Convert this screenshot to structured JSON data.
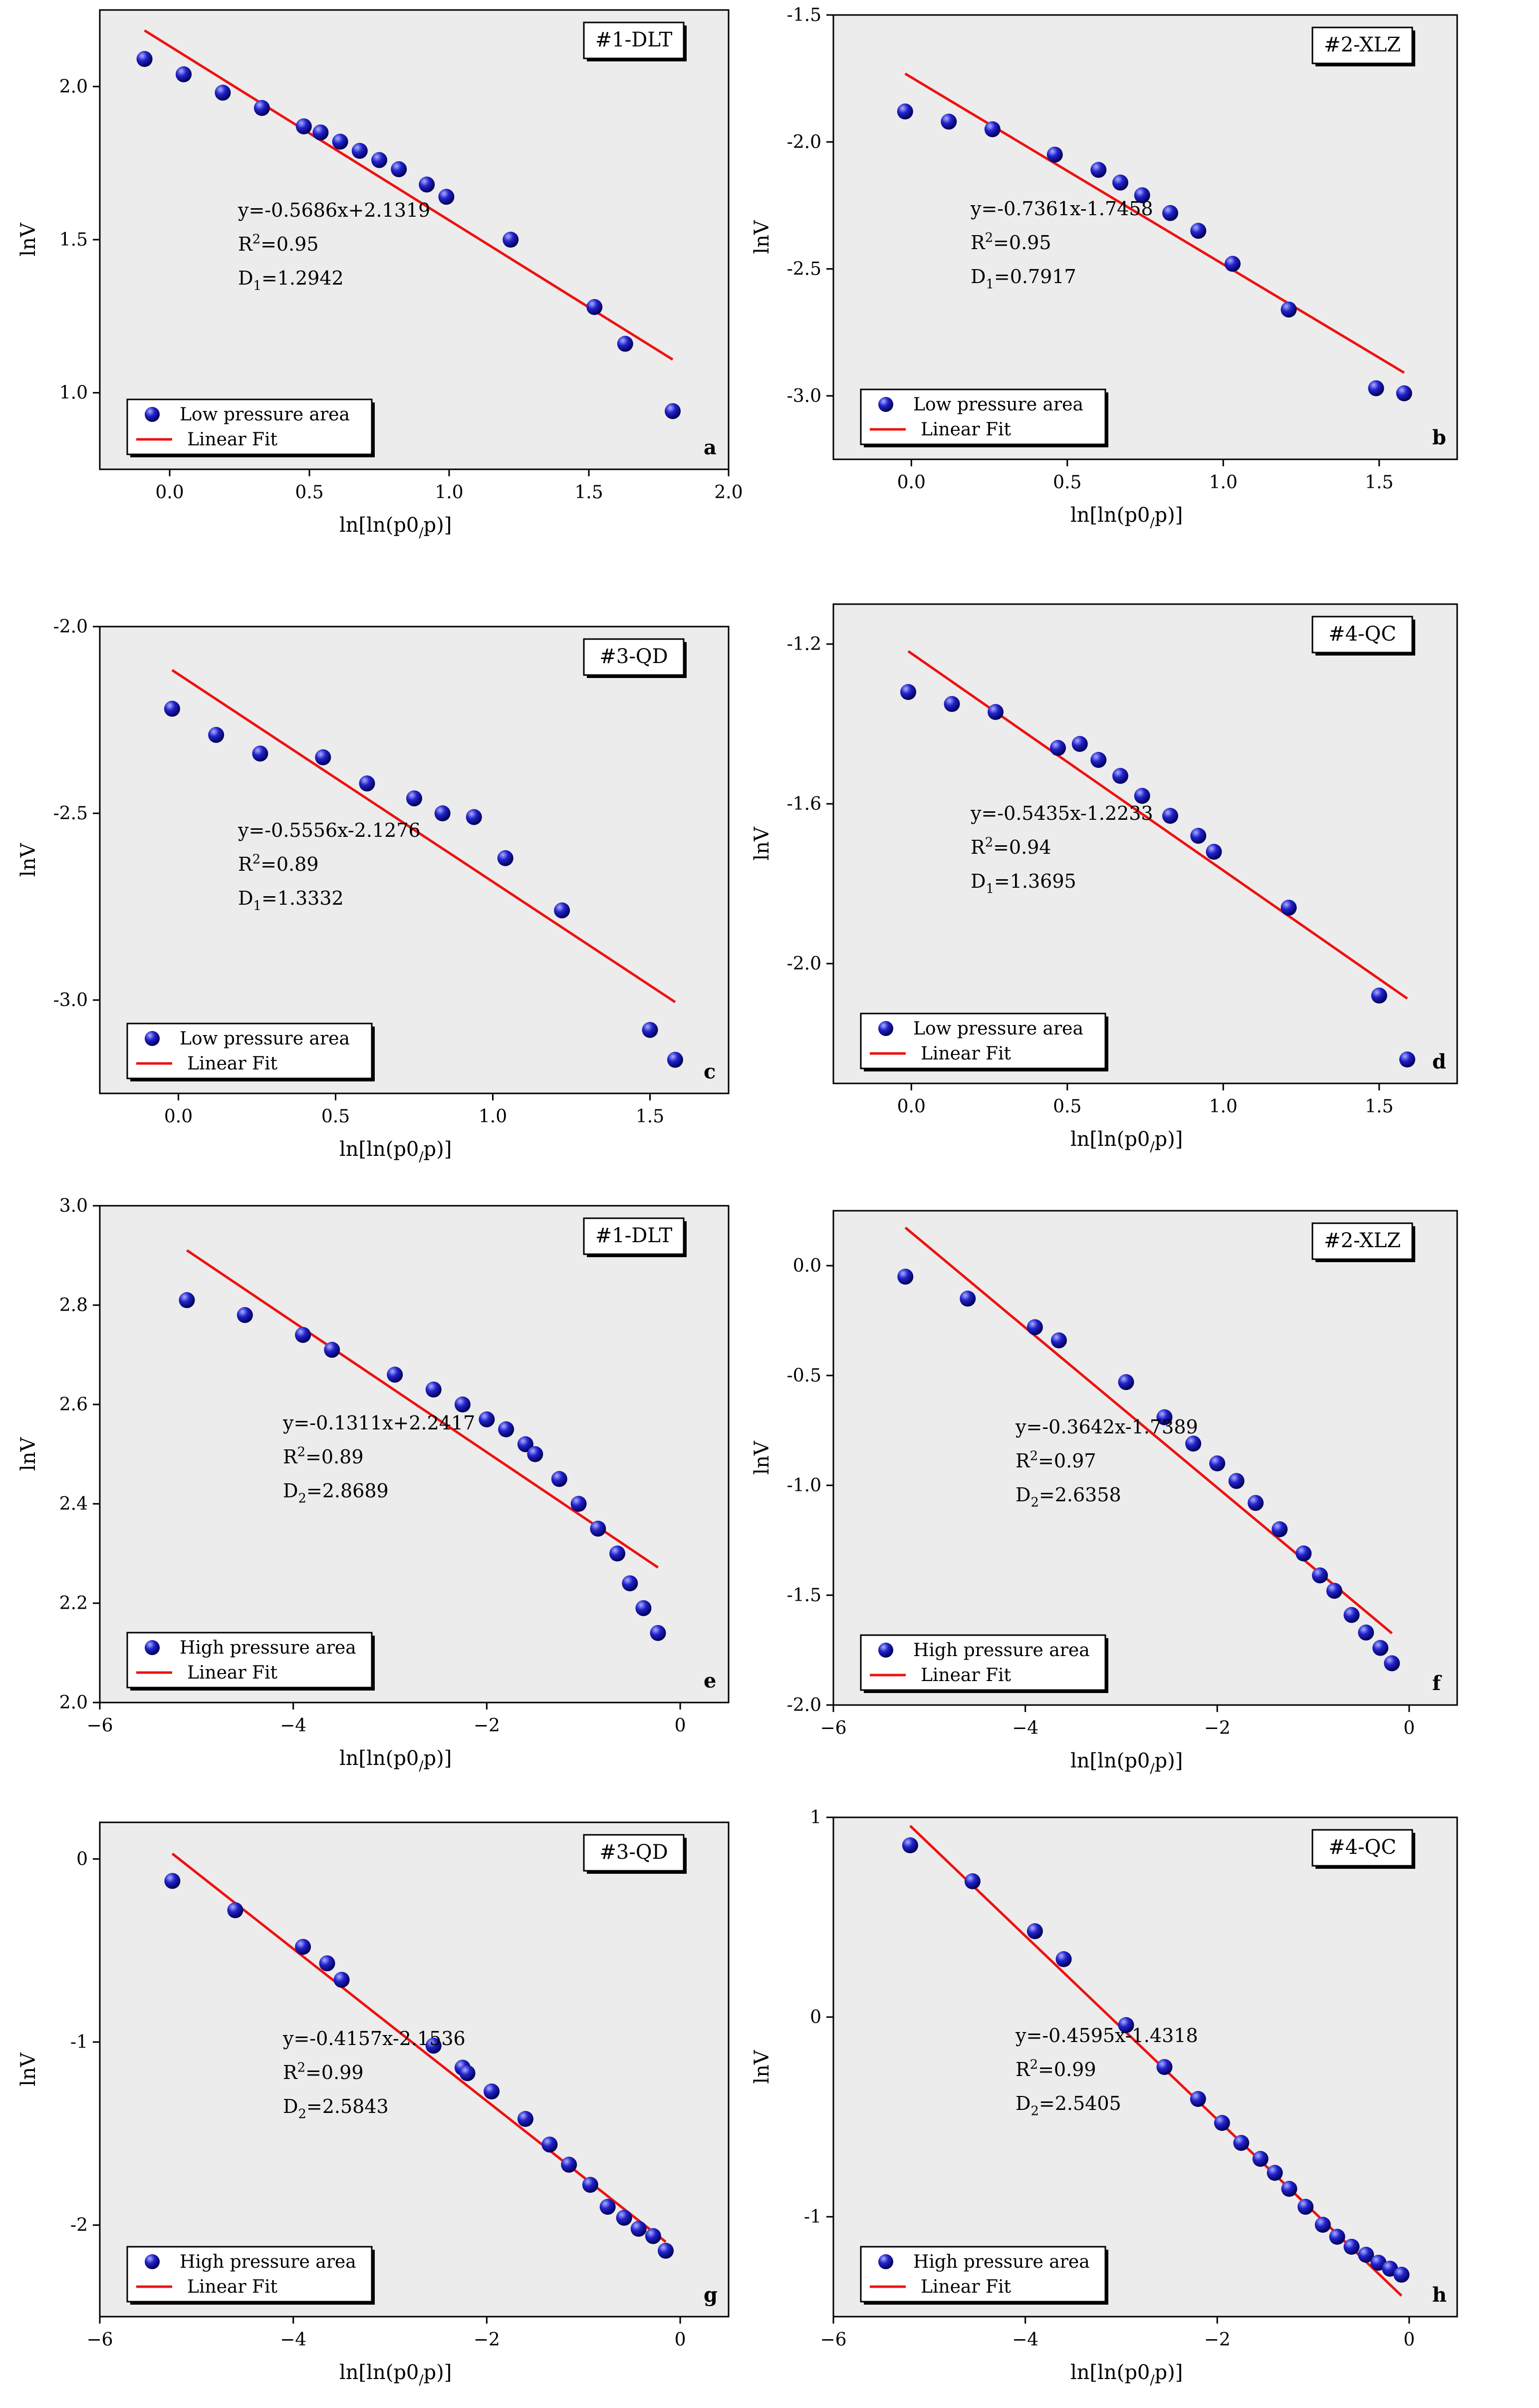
{
  "figure_title": "",
  "chart_data": [
    {
      "type": "scatter",
      "panel_letter": "a",
      "sample_label": "#1-DLT",
      "xlabel": "ln[ln(p0/p)]",
      "ylabel": "lnV",
      "xlim": [
        -0.25,
        2.0
      ],
      "ylim": [
        0.75,
        2.25
      ],
      "xticks": [
        0.0,
        0.5,
        1.0,
        1.5,
        2.0
      ],
      "xticklabels": [
        "0.0",
        "0.5",
        "1.0",
        "1.5",
        "2.0"
      ],
      "yticks": [
        1.0,
        1.5,
        2.0
      ],
      "yticklabels": [
        "1.0",
        "1.5",
        "2.0"
      ],
      "x": [
        -0.09,
        0.05,
        0.19,
        0.33,
        0.48,
        0.54,
        0.61,
        0.68,
        0.75,
        0.82,
        0.92,
        0.99,
        1.22,
        1.52,
        1.63,
        1.8
      ],
      "y": [
        2.09,
        2.04,
        1.98,
        1.93,
        1.87,
        1.85,
        1.82,
        1.79,
        1.76,
        1.73,
        1.68,
        1.64,
        1.5,
        1.28,
        1.16,
        0.94
      ],
      "fit": {
        "slope": -0.5686,
        "intercept": 2.1319,
        "x_range": [
          -0.09,
          1.8
        ]
      },
      "equation": "y=-0.5686x+2.1319",
      "r2": "R2=0.95",
      "dim_label": "D1=1.2942",
      "legend": [
        "Low pressure area",
        "Linear Fit"
      ]
    },
    {
      "type": "scatter",
      "panel_letter": "b",
      "sample_label": "#2-XLZ",
      "xlabel": "ln[ln(p0/p)]",
      "ylabel": "lnV",
      "xlim": [
        -0.25,
        1.75
      ],
      "ylim": [
        -3.25,
        -1.5
      ],
      "xticks": [
        0.0,
        0.5,
        1.0,
        1.5
      ],
      "xticklabels": [
        "0.0",
        "0.5",
        "1.0",
        "1.5"
      ],
      "yticks": [
        -3.0,
        -2.5,
        -2.0,
        -1.5
      ],
      "yticklabels": [
        "-3.0",
        "-2.5",
        "-2.0",
        "-1.5"
      ],
      "x": [
        -0.02,
        0.12,
        0.26,
        0.46,
        0.6,
        0.67,
        0.74,
        0.83,
        0.92,
        1.03,
        1.21,
        1.49,
        1.58
      ],
      "y": [
        -1.88,
        -1.92,
        -1.95,
        -2.05,
        -2.11,
        -2.16,
        -2.21,
        -2.28,
        -2.35,
        -2.48,
        -2.66,
        -2.97,
        -2.99
      ],
      "fit": {
        "slope": -0.7361,
        "intercept": -1.7458,
        "x_range": [
          -0.02,
          1.58
        ]
      },
      "equation": "y=-0.7361x-1.7458",
      "r2": "R2=0.95",
      "dim_label": "D1=0.7917",
      "legend": [
        "Low pressure area",
        "Linear Fit"
      ]
    },
    {
      "type": "scatter",
      "panel_letter": "c",
      "sample_label": "#3-QD",
      "xlabel": "ln[ln(p0/p)]",
      "ylabel": "lnV",
      "xlim": [
        -0.25,
        1.75
      ],
      "ylim": [
        -3.25,
        -2.0
      ],
      "xticks": [
        0.0,
        0.5,
        1.0,
        1.5
      ],
      "xticklabels": [
        "0.0",
        "0.5",
        "1.0",
        "1.5"
      ],
      "yticks": [
        -3.0,
        -2.5,
        -2.0
      ],
      "yticklabels": [
        "-3.0",
        "-2.5",
        "-2.0"
      ],
      "x": [
        -0.02,
        0.12,
        0.26,
        0.46,
        0.6,
        0.75,
        0.84,
        0.94,
        1.04,
        1.22,
        1.5,
        1.58
      ],
      "y": [
        -2.22,
        -2.29,
        -2.34,
        -2.35,
        -2.42,
        -2.46,
        -2.5,
        -2.51,
        -2.62,
        -2.76,
        -3.08,
        -3.16
      ],
      "fit": {
        "slope": -0.5556,
        "intercept": -2.1276,
        "x_range": [
          -0.02,
          1.58
        ]
      },
      "equation": "y=-0.5556x-2.1276",
      "r2": "R2=0.89",
      "dim_label": "D1=1.3332",
      "legend": [
        "Low pressure area",
        "Linear Fit"
      ]
    },
    {
      "type": "scatter",
      "panel_letter": "d",
      "sample_label": "#4-QC",
      "xlabel": "ln[ln(p0/p)]",
      "ylabel": "lnV",
      "xlim": [
        -0.25,
        1.75
      ],
      "ylim": [
        -2.3,
        -1.1
      ],
      "xticks": [
        0.0,
        0.5,
        1.0,
        1.5
      ],
      "xticklabels": [
        "0.0",
        "0.5",
        "1.0",
        "1.5"
      ],
      "yticks": [
        -2.0,
        -1.6,
        -1.2
      ],
      "yticklabels": [
        "-2.0",
        "-1.6",
        "-1.2"
      ],
      "x": [
        -0.01,
        0.13,
        0.27,
        0.47,
        0.54,
        0.6,
        0.67,
        0.74,
        0.83,
        0.92,
        0.97,
        1.21,
        1.5,
        1.59
      ],
      "y": [
        -1.32,
        -1.35,
        -1.37,
        -1.46,
        -1.45,
        -1.49,
        -1.53,
        -1.58,
        -1.63,
        -1.68,
        -1.72,
        -1.86,
        -2.08,
        -2.24
      ],
      "fit": {
        "slope": -0.5435,
        "intercept": -1.2233,
        "x_range": [
          -0.01,
          1.59
        ]
      },
      "equation": "y=-0.5435x-1.2233",
      "r2": "R2=0.94",
      "dim_label": "D1=1.3695",
      "legend": [
        "Low pressure area",
        "Linear Fit"
      ]
    },
    {
      "type": "scatter",
      "panel_letter": "e",
      "sample_label": "#1-DLT",
      "xlabel": "ln[ln(p0/p)]",
      "ylabel": "lnV",
      "xlim": [
        -6.0,
        0.5
      ],
      "ylim": [
        2.0,
        3.0
      ],
      "xticks": [
        -6,
        -4,
        -2,
        0
      ],
      "xticklabels": [
        "−6",
        "−4",
        "−2",
        "0"
      ],
      "yticks": [
        2.0,
        2.2,
        2.4,
        2.6,
        2.8,
        3.0
      ],
      "yticklabels": [
        "2.0",
        "2.2",
        "2.4",
        "2.6",
        "2.8",
        "3.0"
      ],
      "x": [
        -5.1,
        -4.5,
        -3.9,
        -3.6,
        -2.95,
        -2.55,
        -2.25,
        -2.0,
        -1.8,
        -1.6,
        -1.5,
        -1.25,
        -1.05,
        -0.85,
        -0.65,
        -0.52,
        -0.38,
        -0.23
      ],
      "y": [
        2.81,
        2.78,
        2.74,
        2.71,
        2.66,
        2.63,
        2.6,
        2.57,
        2.55,
        2.52,
        2.5,
        2.45,
        2.4,
        2.35,
        2.3,
        2.24,
        2.19,
        2.14
      ],
      "fit": {
        "slope": -0.1311,
        "intercept": 2.2417,
        "x_range": [
          -5.1,
          -0.23
        ]
      },
      "equation": "y=-0.1311x+2.2417",
      "r2": "R2=0.89",
      "dim_label": "D2=2.8689",
      "legend": [
        "High pressure area",
        "Linear Fit"
      ]
    },
    {
      "type": "scatter",
      "panel_letter": "f",
      "sample_label": "#2-XLZ",
      "xlabel": "ln[ln(p0/p)]",
      "ylabel": "lnV",
      "xlim": [
        -6.0,
        0.5
      ],
      "ylim": [
        -2.0,
        0.25
      ],
      "xticks": [
        -6,
        -4,
        -2,
        0
      ],
      "xticklabels": [
        "−6",
        "−4",
        "−2",
        "0"
      ],
      "yticks": [
        -2.0,
        -1.5,
        -1.0,
        -0.5,
        0.0
      ],
      "yticklabels": [
        "-2.0",
        "-1.5",
        "-1.0",
        "-0.5",
        "0.0"
      ],
      "x": [
        -5.25,
        -4.6,
        -3.9,
        -3.65,
        -2.95,
        -2.55,
        -2.25,
        -2.0,
        -1.8,
        -1.6,
        -1.35,
        -1.1,
        -0.93,
        -0.78,
        -0.6,
        -0.45,
        -0.3,
        -0.18
      ],
      "y": [
        -0.05,
        -0.15,
        -0.28,
        -0.34,
        -0.53,
        -0.69,
        -0.81,
        -0.9,
        -0.98,
        -1.08,
        -1.2,
        -1.31,
        -1.41,
        -1.48,
        -1.59,
        -1.67,
        -1.74,
        -1.81
      ],
      "fit": {
        "slope": -0.3642,
        "intercept": -1.7389,
        "x_range": [
          -5.25,
          -0.18
        ]
      },
      "equation": "y=-0.3642x-1.7389",
      "r2": "R2=0.97",
      "dim_label": "D2=2.6358",
      "legend": [
        "High pressure area",
        "Linear Fit"
      ]
    },
    {
      "type": "scatter",
      "panel_letter": "g",
      "sample_label": "#3-QD",
      "xlabel": "ln[ln(p0/p)]",
      "ylabel": "lnV",
      "xlim": [
        -6.0,
        0.5
      ],
      "ylim": [
        -2.5,
        0.2
      ],
      "xticks": [
        -6,
        -4,
        -2,
        0
      ],
      "xticklabels": [
        "−6",
        "−4",
        "−2",
        "0"
      ],
      "yticks": [
        -2,
        -1,
        0
      ],
      "yticklabels": [
        "-2",
        "-1",
        "0"
      ],
      "x": [
        -5.25,
        -4.6,
        -3.9,
        -3.65,
        -3.5,
        -2.55,
        -2.25,
        -2.2,
        -1.95,
        -1.6,
        -1.35,
        -1.15,
        -0.93,
        -0.75,
        -0.58,
        -0.43,
        -0.28,
        -0.15
      ],
      "y": [
        -0.12,
        -0.28,
        -0.48,
        -0.57,
        -0.66,
        -1.02,
        -1.14,
        -1.17,
        -1.27,
        -1.42,
        -1.56,
        -1.67,
        -1.78,
        -1.9,
        -1.96,
        -2.02,
        -2.06,
        -2.14
      ],
      "fit": {
        "slope": -0.4157,
        "intercept": -2.1536,
        "x_range": [
          -5.25,
          -0.15
        ]
      },
      "equation": "y=-0.4157x-2.1536",
      "r2": "R2=0.99",
      "dim_label": "D2=2.5843",
      "legend": [
        "High pressure area",
        "Linear Fit"
      ]
    },
    {
      "type": "scatter",
      "panel_letter": "h",
      "sample_label": "#4-QC",
      "xlabel": "ln[ln(p0/p)]",
      "ylabel": "lnV",
      "xlim": [
        -6.0,
        0.5
      ],
      "ylim": [
        -1.5,
        1.0
      ],
      "xticks": [
        -6,
        -4,
        -2,
        0
      ],
      "xticklabels": [
        "−6",
        "−4",
        "−2",
        "0"
      ],
      "yticks": [
        -1,
        0,
        1
      ],
      "yticklabels": [
        "-1",
        "0",
        "1"
      ],
      "x": [
        -5.2,
        -4.55,
        -3.9,
        -3.6,
        -2.95,
        -2.55,
        -2.2,
        -1.95,
        -1.75,
        -1.55,
        -1.4,
        -1.25,
        -1.08,
        -0.9,
        -0.75,
        -0.6,
        -0.45,
        -0.32,
        -0.2,
        -0.08
      ],
      "y": [
        0.86,
        0.68,
        0.43,
        0.29,
        -0.04,
        -0.25,
        -0.41,
        -0.53,
        -0.63,
        -0.71,
        -0.78,
        -0.86,
        -0.95,
        -1.04,
        -1.1,
        -1.15,
        -1.19,
        -1.23,
        -1.26,
        -1.29
      ],
      "fit": {
        "slope": -0.4595,
        "intercept": -1.4318,
        "x_range": [
          -5.2,
          -0.08
        ]
      },
      "equation": "y=-0.4595x-1.4318",
      "r2": "R2=0.99",
      "dim_label": "D2=2.5405",
      "legend": [
        "High pressure area",
        "Linear Fit"
      ]
    }
  ],
  "colors": {
    "plot_background": "#ececec",
    "frame": "#000000",
    "marker_fill": "#1a1ab8",
    "marker_highlight": "#aab0ff",
    "fit_line": "#ee1111"
  }
}
